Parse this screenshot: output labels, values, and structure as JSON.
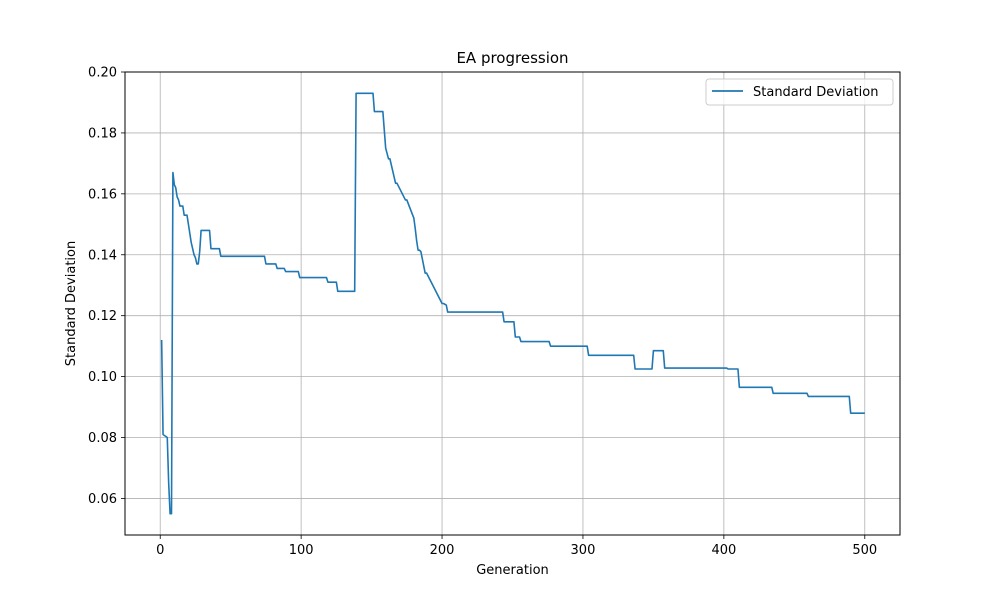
{
  "chart_data": {
    "type": "line",
    "title": "EA progression",
    "xlabel": "Generation",
    "ylabel": "Standard Deviation",
    "xlim": [
      -25,
      525
    ],
    "ylim": [
      0.048,
      0.2
    ],
    "xticks": [
      0,
      100,
      200,
      300,
      400,
      500
    ],
    "yticks": [
      0.06,
      0.08,
      0.1,
      0.12,
      0.14,
      0.16,
      0.18,
      0.2
    ],
    "ytick_labels": [
      "0.06",
      "0.08",
      "0.10",
      "0.12",
      "0.14",
      "0.16",
      "0.18",
      "0.20"
    ],
    "grid": true,
    "legend_position": "top-right",
    "series": [
      {
        "name": "Standard Deviation",
        "color": "#1f77b4",
        "x": [
          1,
          2,
          5,
          6,
          7,
          8,
          9,
          10,
          11,
          12,
          13,
          14,
          16,
          17,
          19,
          20,
          22,
          23,
          24,
          25,
          26,
          27,
          28,
          29,
          30,
          35,
          36,
          42,
          43,
          74,
          75,
          82,
          83,
          88,
          89,
          98,
          99,
          118,
          119,
          125,
          126,
          138,
          139,
          151,
          152,
          158,
          159,
          160,
          162,
          163,
          167,
          168,
          174,
          175,
          180,
          181,
          182,
          183,
          184,
          185,
          188,
          189,
          200,
          201,
          203,
          204,
          243,
          244,
          251,
          252,
          255,
          256,
          276,
          277,
          303,
          304,
          336,
          337,
          349,
          350,
          357,
          358,
          402,
          403,
          410,
          411,
          434,
          435,
          459,
          460,
          489,
          490,
          500
        ],
        "y": [
          0.112,
          0.081,
          0.08,
          0.065,
          0.055,
          0.055,
          0.167,
          0.163,
          0.162,
          0.159,
          0.158,
          0.156,
          0.156,
          0.153,
          0.153,
          0.15,
          0.144,
          0.142,
          0.14,
          0.139,
          0.137,
          0.137,
          0.141,
          0.148,
          0.148,
          0.148,
          0.142,
          0.142,
          0.1395,
          0.1395,
          0.137,
          0.137,
          0.1355,
          0.1355,
          0.1345,
          0.1345,
          0.1325,
          0.1325,
          0.131,
          0.131,
          0.128,
          0.128,
          0.193,
          0.193,
          0.187,
          0.187,
          0.181,
          0.175,
          0.1715,
          0.1715,
          0.1635,
          0.1635,
          0.158,
          0.158,
          0.152,
          0.1485,
          0.1445,
          0.1415,
          0.1415,
          0.141,
          0.134,
          0.134,
          0.124,
          0.124,
          0.1235,
          0.1212,
          0.1212,
          0.118,
          0.118,
          0.113,
          0.113,
          0.1115,
          0.1115,
          0.11,
          0.11,
          0.107,
          0.107,
          0.1025,
          0.1025,
          0.1085,
          0.1085,
          0.1028,
          0.1028,
          0.1025,
          0.1025,
          0.0965,
          0.0965,
          0.0945,
          0.0945,
          0.0935,
          0.0935,
          0.088,
          0.088
        ]
      }
    ]
  }
}
